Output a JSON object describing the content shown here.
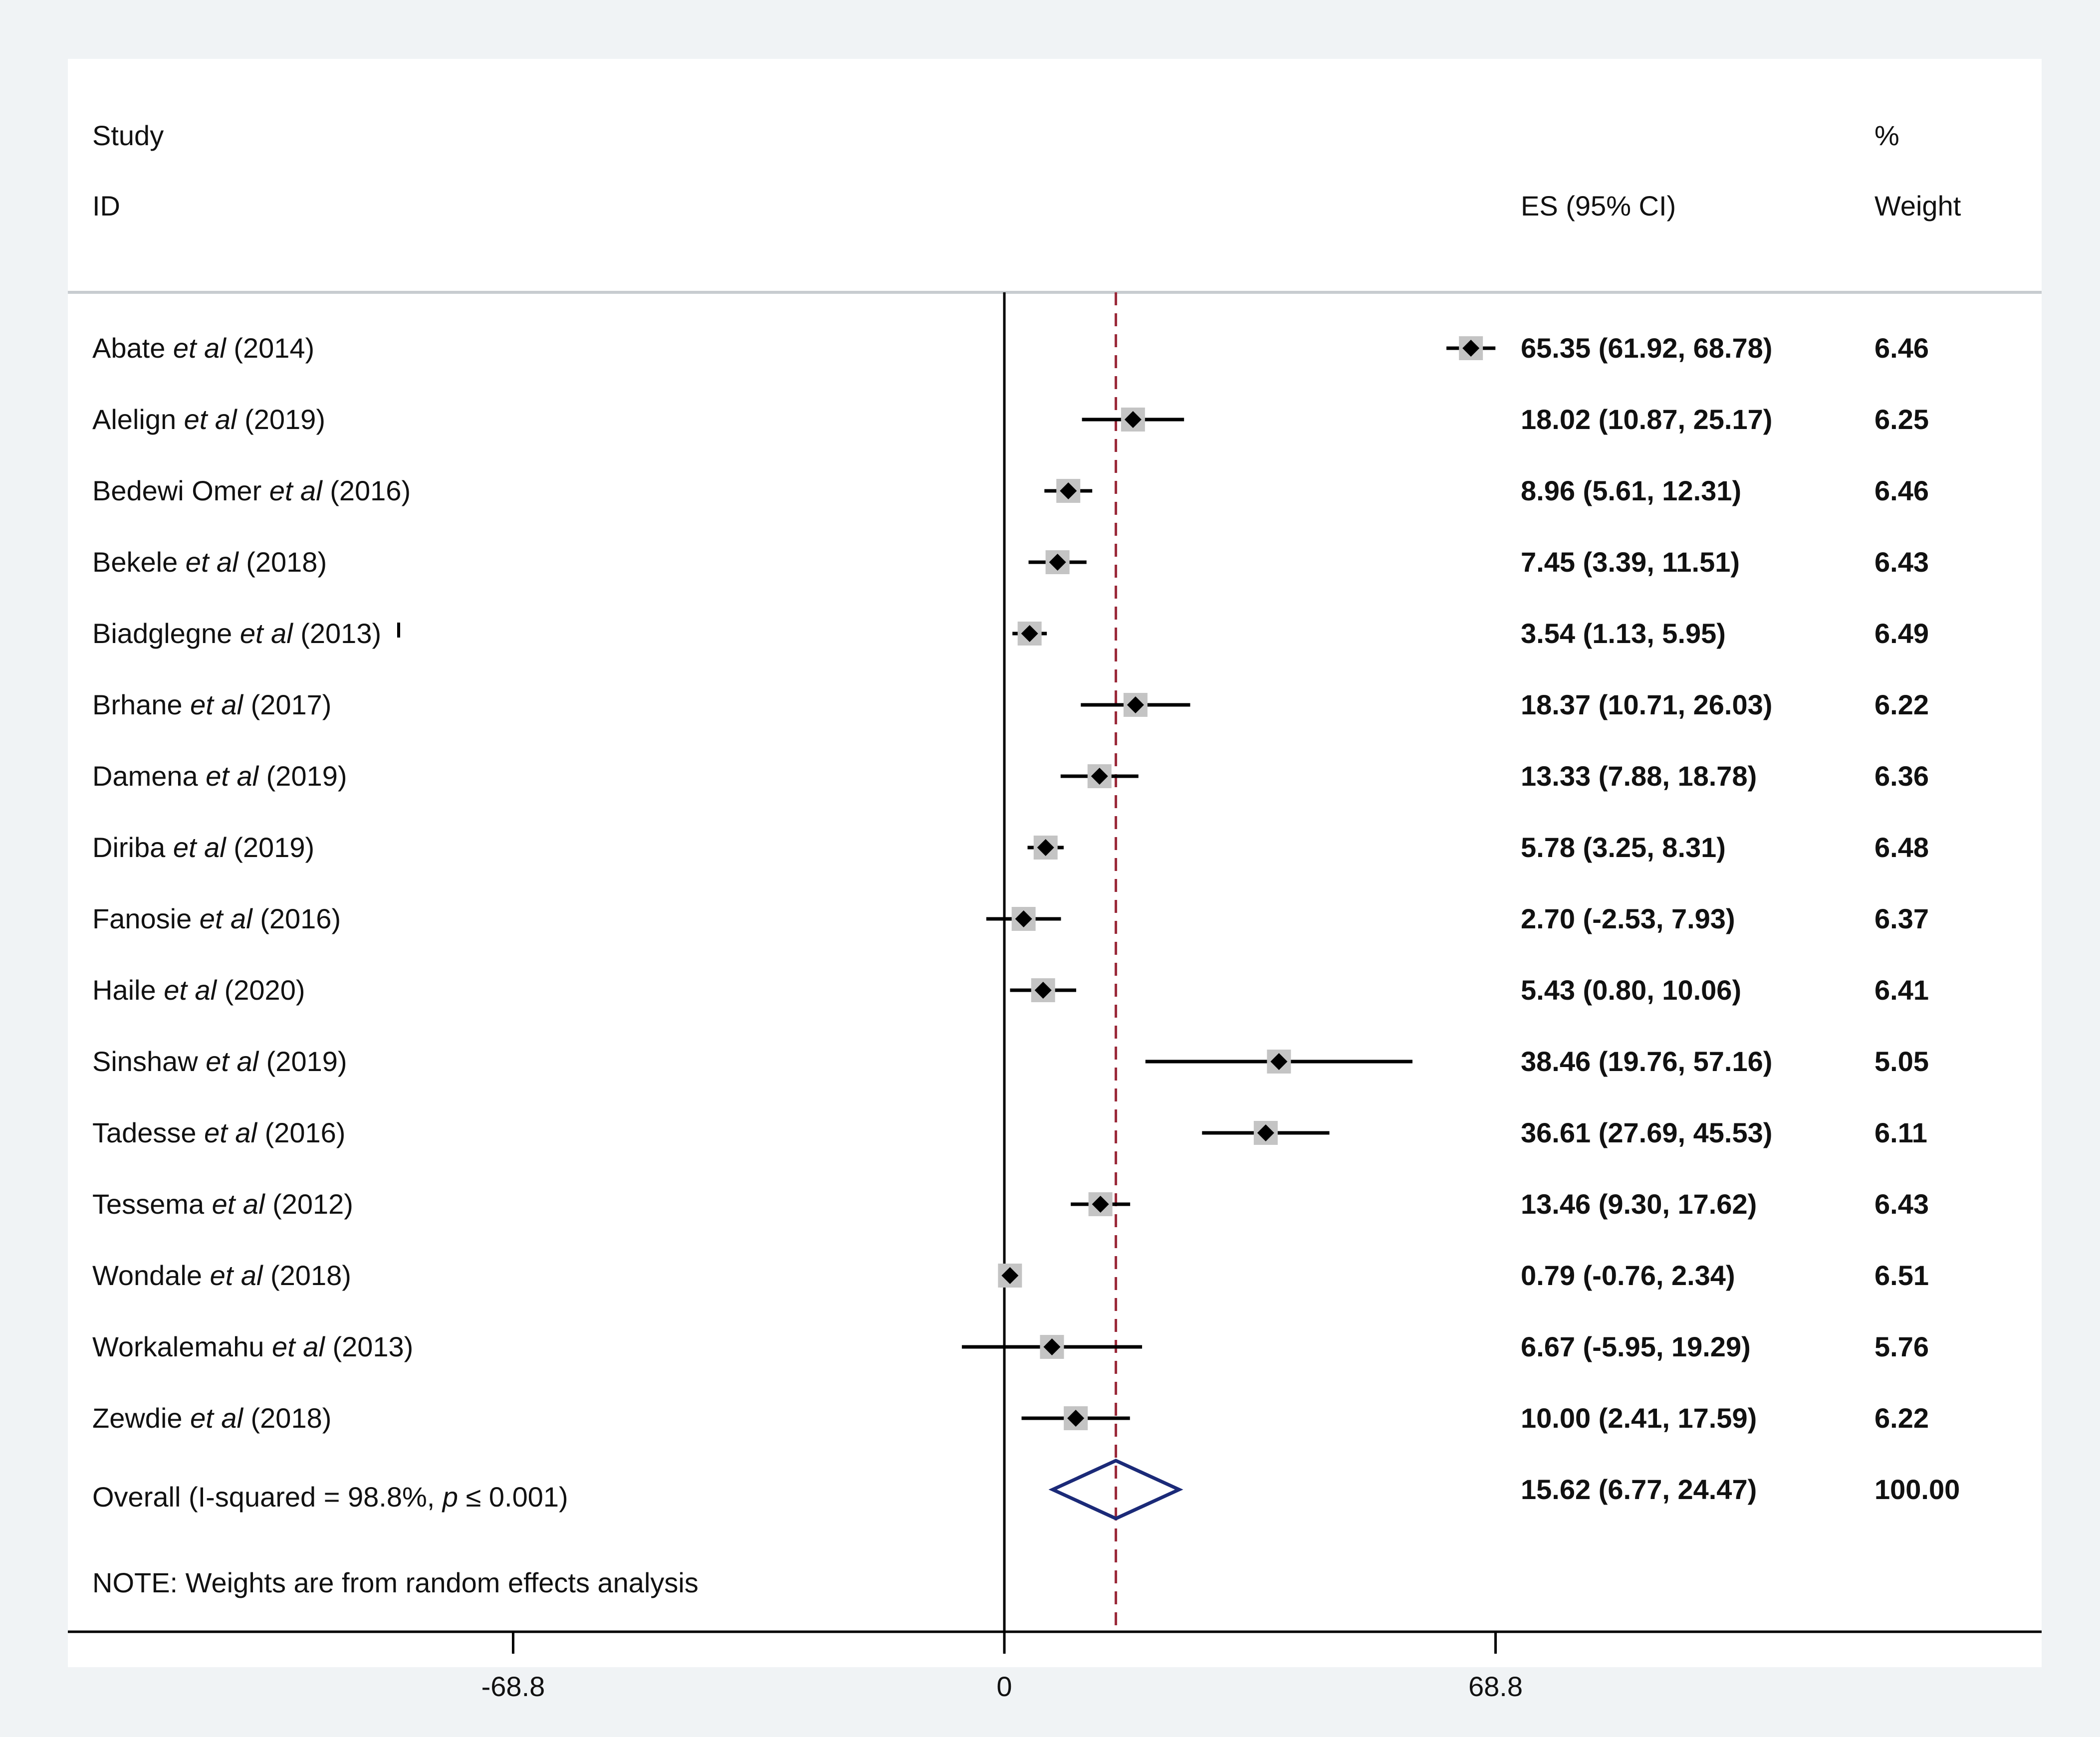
{
  "chart_data": {
    "type": "forest",
    "headers": {
      "study_line1": "Study",
      "study_line2": "ID",
      "es_label": "ES (95% CI)",
      "weight_line1": "%",
      "weight_line2": "Weight"
    },
    "studies": [
      {
        "name": "Abate",
        "etal": "et al",
        "year": "(2014)",
        "es": 65.35,
        "lo": 61.92,
        "hi": 68.78,
        "es_text": "65.35 (61.92, 68.78)",
        "weight": "6.46"
      },
      {
        "name": "Alelign",
        "etal": "et al",
        "year": "(2019)",
        "es": 18.02,
        "lo": 10.87,
        "hi": 25.17,
        "es_text": "18.02 (10.87, 25.17)",
        "weight": "6.25"
      },
      {
        "name": "Bedewi Omer",
        "etal": "et al",
        "year": "(2016)",
        "es": 8.96,
        "lo": 5.61,
        "hi": 12.31,
        "es_text": "8.96 (5.61, 12.31)",
        "weight": "6.46"
      },
      {
        "name": "Bekele",
        "etal": "et al",
        "year": "(2018)",
        "es": 7.45,
        "lo": 3.39,
        "hi": 11.51,
        "es_text": "7.45 (3.39, 11.51)",
        "weight": "6.43"
      },
      {
        "name": "Biadglegne",
        "etal": "et al",
        "year": "(2013)",
        "es": 3.54,
        "lo": 1.13,
        "hi": 5.95,
        "es_text": "3.54 (1.13, 5.95)",
        "weight": "6.49"
      },
      {
        "name": "Brhane",
        "etal": "et al",
        "year": "(2017)",
        "es": 18.37,
        "lo": 10.71,
        "hi": 26.03,
        "es_text": "18.37 (10.71, 26.03)",
        "weight": "6.22"
      },
      {
        "name": "Damena",
        "etal": "et al",
        "year": "(2019)",
        "es": 13.33,
        "lo": 7.88,
        "hi": 18.78,
        "es_text": "13.33 (7.88, 18.78)",
        "weight": "6.36"
      },
      {
        "name": "Diriba",
        "etal": "et al",
        "year": "(2019)",
        "es": 5.78,
        "lo": 3.25,
        "hi": 8.31,
        "es_text": "5.78 (3.25, 8.31)",
        "weight": "6.48"
      },
      {
        "name": "Fanosie",
        "etal": "et al",
        "year": "(2016)",
        "es": 2.7,
        "lo": -2.53,
        "hi": 7.93,
        "es_text": "2.70 (-2.53, 7.93)",
        "weight": "6.37"
      },
      {
        "name": "Haile",
        "etal": "et al",
        "year": "(2020)",
        "es": 5.43,
        "lo": 0.8,
        "hi": 10.06,
        "es_text": "5.43 (0.80, 10.06)",
        "weight": "6.41"
      },
      {
        "name": "Sinshaw",
        "etal": "et al",
        "year": "(2019)",
        "es": 38.46,
        "lo": 19.76,
        "hi": 57.16,
        "es_text": "38.46 (19.76, 57.16)",
        "weight": "5.05"
      },
      {
        "name": "Tadesse",
        "etal": "et al",
        "year": "(2016)",
        "es": 36.61,
        "lo": 27.69,
        "hi": 45.53,
        "es_text": "36.61 (27.69, 45.53)",
        "weight": "6.11"
      },
      {
        "name": "Tessema",
        "etal": "et al",
        "year": "(2012)",
        "es": 13.46,
        "lo": 9.3,
        "hi": 17.62,
        "es_text": "13.46 (9.30, 17.62)",
        "weight": "6.43"
      },
      {
        "name": "Wondale",
        "etal": "et al",
        "year": "(2018)",
        "es": 0.79,
        "lo": -0.76,
        "hi": 2.34,
        "es_text": "0.79 (-0.76, 2.34)",
        "weight": "6.51"
      },
      {
        "name": "Workalemahu",
        "etal": "et al",
        "year": "(2013)",
        "es": 6.67,
        "lo": -5.95,
        "hi": 19.29,
        "es_text": "6.67 (-5.95, 19.29)",
        "weight": "5.76"
      },
      {
        "name": "Zewdie",
        "etal": "et al",
        "year": "(2018)",
        "es": 10.0,
        "lo": 2.41,
        "hi": 17.59,
        "es_text": "10.00 (2.41, 17.59)",
        "weight": "6.22"
      }
    ],
    "overall": {
      "label_prefix": "Overall (I-squared = 98.8%, ",
      "label_p": "p",
      "label_suffix": " ≤ 0.001)",
      "es": 15.62,
      "lo": 6.77,
      "hi": 24.47,
      "es_text": "15.62 (6.77, 24.47)",
      "weight": "100.00"
    },
    "note": "NOTE: Weights are from random effects analysis",
    "x_axis": {
      "ticks": [
        -68.8,
        0,
        68.8
      ],
      "tick_labels": [
        "-68.8",
        "0",
        "68.8"
      ],
      "null_value": 0
    },
    "colors": {
      "frame": "#f0f3f5",
      "ci_line": "#000000",
      "point": "#000000",
      "weight_box": "#c4c4c4",
      "overall_diamond": "#1b2a78",
      "overall_line": "#9b2a3a",
      "divider": "#c8ccd0"
    }
  }
}
